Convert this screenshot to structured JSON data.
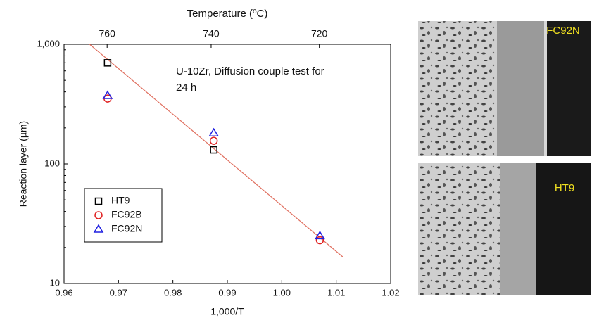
{
  "chart_data": {
    "type": "scatter",
    "log_y": true,
    "xlabel": "1,000/T",
    "ylabel": "Reaction layer (µm)",
    "x2label": "Temperature (ºC)",
    "annotation": [
      "U-10Zr, Diffusion couple test for",
      "24 h"
    ],
    "x": [
      0.968,
      0.9875,
      1.007
    ],
    "series": [
      {
        "name": "HT9",
        "color": "#000000",
        "marker": "square",
        "values": [
          700,
          131,
          null
        ]
      },
      {
        "name": "FC92B",
        "color": "#e02020",
        "marker": "circle",
        "values": [
          352,
          156,
          23
        ]
      },
      {
        "name": "FC92N",
        "color": "#2020e0",
        "marker": "triangle",
        "values": [
          372,
          181,
          25
        ]
      }
    ],
    "fit_line": {
      "color": "#e07060",
      "x": [
        0.9647,
        1.0112
      ],
      "values": [
        1000,
        16.7
      ]
    },
    "xlim": [
      0.96,
      1.02
    ],
    "xticks": [
      0.96,
      0.97,
      0.98,
      0.99,
      {
        "value": 1.0,
        "label": "1.00"
      },
      1.01,
      1.02
    ],
    "ylim": [
      10,
      1000
    ],
    "yticks": [
      10,
      100,
      {
        "value": 1000,
        "label": "1,000"
      }
    ],
    "x2ticks": [
      760,
      740,
      720
    ],
    "legend": "lower-left"
  },
  "images": [
    {
      "label": "FC92N"
    },
    {
      "label": "HT9"
    }
  ]
}
